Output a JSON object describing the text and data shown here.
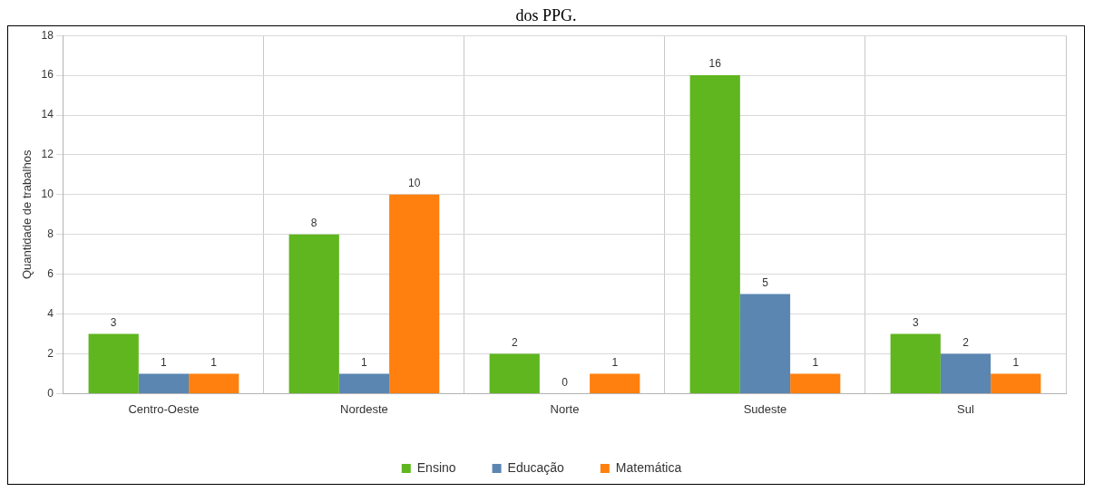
{
  "chart_data": {
    "type": "bar",
    "title": "dos PPG.",
    "ylabel": "Quantidade de trabalhos",
    "categories": [
      "Centro-Oeste",
      "Nordeste",
      "Norte",
      "Sudeste",
      "Sul"
    ],
    "series": [
      {
        "name": "Ensino",
        "color": "#5fb61f",
        "values": [
          3,
          8,
          2,
          16,
          3
        ]
      },
      {
        "name": "Educação",
        "color": "#5b86b2",
        "values": [
          1,
          1,
          0,
          5,
          2
        ]
      },
      {
        "name": "Matemática",
        "color": "#ff800e",
        "values": [
          1,
          10,
          1,
          1,
          1
        ]
      }
    ],
    "ylim": [
      0,
      18
    ],
    "yticks": [
      0,
      2,
      4,
      6,
      8,
      10,
      12,
      14,
      16,
      18
    ],
    "grid": true,
    "legend": "bottom",
    "data_labels": true
  }
}
